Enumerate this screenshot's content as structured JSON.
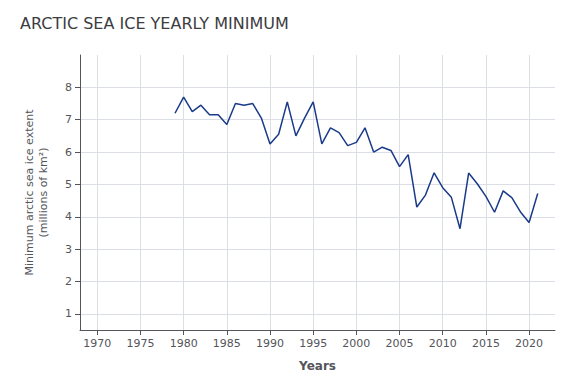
{
  "chart_data": {
    "type": "line",
    "title": "ARCTIC SEA ICE YEARLY MINIMUM",
    "xlabel": "Years",
    "ylabel": "Minimum arctic sea ice extent\n(millions of km²)",
    "color": "#1a3a8a",
    "grid": true,
    "xlim": [
      1968,
      2023
    ],
    "ylim": [
      0.5,
      9
    ],
    "xticks": [
      1970,
      1975,
      1980,
      1985,
      1990,
      1995,
      2000,
      2005,
      2010,
      2015,
      2020
    ],
    "yticks": [
      1,
      2,
      3,
      4,
      5,
      6,
      7,
      8
    ],
    "x": [
      1979,
      1980,
      1981,
      1982,
      1983,
      1984,
      1985,
      1986,
      1987,
      1988,
      1989,
      1990,
      1991,
      1992,
      1993,
      1994,
      1995,
      1996,
      1997,
      1998,
      1999,
      2000,
      2001,
      2002,
      2003,
      2004,
      2005,
      2006,
      2007,
      2008,
      2009,
      2010,
      2011,
      2012,
      2013,
      2014,
      2015,
      2016,
      2017,
      2018,
      2019,
      2020,
      2021
    ],
    "values": [
      7.2,
      7.7,
      7.25,
      7.45,
      7.15,
      7.15,
      6.85,
      7.5,
      7.45,
      7.5,
      7.05,
      6.25,
      6.55,
      7.55,
      6.5,
      7.05,
      7.55,
      6.25,
      6.75,
      6.6,
      6.2,
      6.3,
      6.75,
      6.0,
      6.15,
      6.05,
      5.55,
      5.92,
      4.3,
      4.67,
      5.36,
      4.9,
      4.6,
      3.63,
      5.35,
      5.02,
      4.63,
      4.14,
      4.8,
      4.59,
      4.15,
      3.82,
      4.72
    ]
  }
}
